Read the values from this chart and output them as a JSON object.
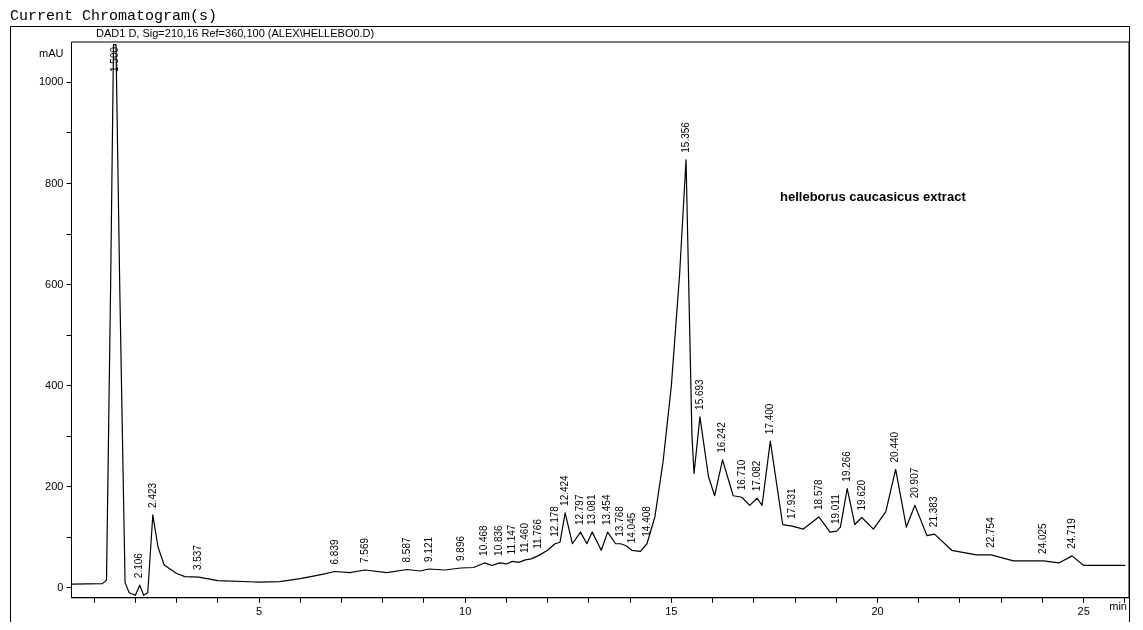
{
  "chart_data": {
    "type": "line",
    "title": "Current Chromatogram(s)",
    "subtitle": "DAD1 D, Sig=210,16 Ref=360,100 (ALEX\\HELLEBO0.D)",
    "xlabel": "min",
    "ylabel": "mAU",
    "xlim": [
      0.45,
      26.1
    ],
    "ylim": [
      -20,
      1080
    ],
    "xticks": [
      {
        "value": 1,
        "label": null
      },
      {
        "value": 2,
        "label": null
      },
      {
        "value": 3,
        "label": null
      },
      {
        "value": 4,
        "label": null
      },
      5,
      {
        "value": 6,
        "label": null
      },
      {
        "value": 7,
        "label": null
      },
      {
        "value": 8,
        "label": null
      },
      {
        "value": 9,
        "label": null
      },
      10,
      {
        "value": 11,
        "label": null
      },
      {
        "value": 12,
        "label": null
      },
      {
        "value": 13,
        "label": null
      },
      {
        "value": 14,
        "label": null
      },
      15,
      {
        "value": 16,
        "label": null
      },
      {
        "value": 17,
        "label": null
      },
      {
        "value": 18,
        "label": null
      },
      {
        "value": 19,
        "label": null
      },
      20,
      {
        "value": 21,
        "label": null
      },
      {
        "value": 22,
        "label": null
      },
      {
        "value": 23,
        "label": null
      },
      {
        "value": 24,
        "label": null
      },
      25,
      {
        "value": 26,
        "label": null
      }
    ],
    "yticks": [
      0,
      {
        "value": 100,
        "label": null
      },
      200,
      {
        "value": 300,
        "label": null
      },
      400,
      {
        "value": 500,
        "label": null
      },
      600,
      {
        "value": 700,
        "label": null
      },
      800,
      {
        "value": 900,
        "label": null
      },
      1000
    ],
    "grid": false,
    "legend": false,
    "marker": "none",
    "line_style": "solid",
    "series": [
      {
        "color": "#000000",
        "x": [
          0.45,
          1.2,
          1.3,
          1.4,
          1.47,
          1.53,
          1.62,
          1.75,
          1.85,
          2.0,
          2.106,
          2.2,
          2.3,
          2.423,
          2.55,
          2.7,
          3.0,
          3.2,
          3.537,
          4.0,
          5.0,
          5.5,
          6.0,
          6.5,
          6.839,
          7.2,
          7.569,
          8.1,
          8.587,
          8.9,
          9.121,
          9.5,
          9.896,
          10.2,
          10.468,
          10.65,
          10.836,
          11.0,
          11.147,
          11.3,
          11.46,
          11.6,
          11.766,
          12.0,
          12.178,
          12.3,
          12.424,
          12.6,
          12.797,
          12.95,
          13.081,
          13.3,
          13.454,
          13.65,
          13.768,
          13.9,
          14.045,
          14.25,
          14.408,
          14.6,
          14.8,
          15.0,
          15.2,
          15.356,
          15.5,
          15.55,
          15.693,
          15.9,
          16.05,
          16.242,
          16.5,
          16.71,
          16.9,
          17.082,
          17.2,
          17.4,
          17.7,
          17.931,
          18.2,
          18.578,
          18.85,
          19.011,
          19.1,
          19.266,
          19.45,
          19.62,
          19.9,
          20.2,
          20.44,
          20.7,
          20.907,
          21.2,
          21.383,
          21.8,
          22.4,
          22.754,
          23.3,
          24.025,
          24.4,
          24.719,
          25.0,
          26.0
        ],
        "values": [
          7,
          8,
          15,
          600,
          1075,
          1075,
          600,
          10,
          -10,
          -15,
          5,
          -15,
          -10,
          144,
          80,
          45,
          28,
          22,
          21,
          14,
          11,
          12,
          18,
          26,
          32,
          30,
          35,
          30,
          36,
          33,
          37,
          35,
          39,
          40,
          49,
          44,
          49,
          47,
          52,
          50,
          55,
          57,
          63,
          74,
          87,
          90,
          148,
          87,
          110,
          87,
          110,
          74,
          110,
          87,
          87,
          83,
          74,
          72,
          87,
          140,
          250,
          400,
          620,
          847,
          300,
          226,
          338,
          220,
          182,
          253,
          182,
          179,
          163,
          177,
          163,
          290,
          125,
          122,
          116,
          140,
          110,
          112,
          120,
          196,
          125,
          139,
          116,
          150,
          234,
          120,
          163,
          103,
          106,
          74,
          65,
          65,
          53,
          53,
          49,
          63,
          44,
          44
        ]
      }
    ],
    "annotations": [
      "helleborus caucasicus extract",
      {
        "text": "1.500",
        "x": 1.5,
        "y": 1075
      },
      {
        "text": "2.106",
        "x": 2.106,
        "y": 5
      },
      {
        "text": "2.423",
        "x": 2.423,
        "y": 144
      },
      {
        "text": "3.537",
        "x": 3.537,
        "y": 21
      },
      {
        "text": "6.839",
        "x": 6.839,
        "y": 32
      },
      {
        "text": "7.569",
        "x": 7.569,
        "y": 35
      },
      {
        "text": "8.587",
        "x": 8.587,
        "y": 36
      },
      {
        "text": "9.121",
        "x": 9.121,
        "y": 37
      },
      {
        "text": "9.896",
        "x": 9.896,
        "y": 39
      },
      {
        "text": "10.468",
        "x": 10.468,
        "y": 49
      },
      {
        "text": "10.836",
        "x": 10.836,
        "y": 49
      },
      {
        "text": "11.147",
        "x": 11.147,
        "y": 52
      },
      {
        "text": "11.460",
        "x": 11.46,
        "y": 55
      },
      {
        "text": "11.766",
        "x": 11.766,
        "y": 63
      },
      {
        "text": "12.178",
        "x": 12.178,
        "y": 87
      },
      {
        "text": "12.424",
        "x": 12.424,
        "y": 148
      },
      {
        "text": "12.797",
        "x": 12.797,
        "y": 110
      },
      {
        "text": "13.081",
        "x": 13.081,
        "y": 110
      },
      {
        "text": "13.454",
        "x": 13.454,
        "y": 110
      },
      {
        "text": "13.768",
        "x": 13.768,
        "y": 87
      },
      {
        "text": "14.045",
        "x": 14.045,
        "y": 74
      },
      {
        "text": "14.408",
        "x": 14.408,
        "y": 87
      },
      {
        "text": "15.356",
        "x": 15.356,
        "y": 847
      },
      {
        "text": "15.693",
        "x": 15.693,
        "y": 338
      },
      {
        "text": "16.242",
        "x": 16.242,
        "y": 253
      },
      {
        "text": "16.710",
        "x": 16.71,
        "y": 179
      },
      {
        "text": "17.082",
        "x": 17.082,
        "y": 177
      },
      {
        "text": "17.400",
        "x": 17.4,
        "y": 290
      },
      {
        "text": "17.931",
        "x": 17.931,
        "y": 122
      },
      {
        "text": "18.578",
        "x": 18.578,
        "y": 140
      },
      {
        "text": "19.011",
        "x": 19.011,
        "y": 112
      },
      {
        "text": "19.266",
        "x": 19.266,
        "y": 196
      },
      {
        "text": "19.620",
        "x": 19.62,
        "y": 139
      },
      {
        "text": "20.440",
        "x": 20.44,
        "y": 234
      },
      {
        "text": "20.907",
        "x": 20.907,
        "y": 163
      },
      {
        "text": "21.383",
        "x": 21.383,
        "y": 106
      },
      {
        "text": "22.754",
        "x": 22.754,
        "y": 65
      },
      {
        "text": "24.025",
        "x": 24.025,
        "y": 53
      },
      {
        "text": "24.719",
        "x": 24.719,
        "y": 63
      }
    ]
  }
}
